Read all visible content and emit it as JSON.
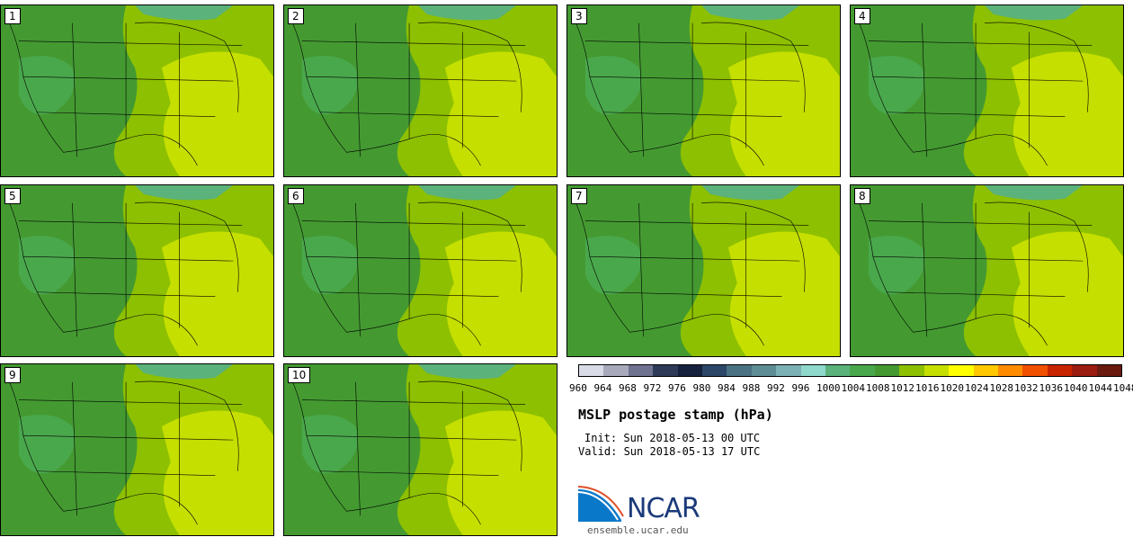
{
  "stamps": [
    {
      "label": "1"
    },
    {
      "label": "2"
    },
    {
      "label": "3"
    },
    {
      "label": "4"
    },
    {
      "label": "5"
    },
    {
      "label": "6"
    },
    {
      "label": "7"
    },
    {
      "label": "8"
    },
    {
      "label": "9"
    },
    {
      "label": "10"
    }
  ],
  "colorbar": {
    "colors": [
      "#d9dce6",
      "#a8aabb",
      "#6f7390",
      "#2f3a58",
      "#16213d",
      "#2c4768",
      "#4a7282",
      "#5f8d96",
      "#7cb1b5",
      "#8fd8cc",
      "#5bb27a",
      "#4aa84c",
      "#449a31",
      "#8dc000",
      "#c5df00",
      "#ffff00",
      "#ffc800",
      "#ff8c00",
      "#f05000",
      "#c82400",
      "#9b1c10",
      "#6b1a10"
    ],
    "labels": [
      "960",
      "964",
      "968",
      "972",
      "976",
      "980",
      "984",
      "988",
      "992",
      "996",
      "1000",
      "1004",
      "1008",
      "1012",
      "1016",
      "1020",
      "1024",
      "1028",
      "1032",
      "1036",
      "1040",
      "1044",
      "1048"
    ]
  },
  "title": "MSLP postage stamp (hPa)",
  "init": "Init: Sun 2018-05-13 00 UTC",
  "valid": "Valid: Sun 2018-05-13 17 UTC",
  "logo": {
    "text": "NCAR",
    "site": "ensemble.ucar.edu"
  }
}
